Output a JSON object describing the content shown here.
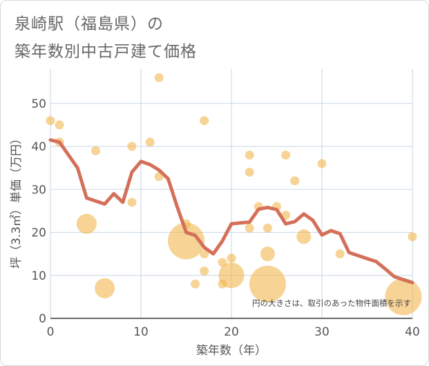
{
  "header": {
    "title_line1": "泉崎駅（福島県）の",
    "title_line2": "築年数別中古戸建て価格"
  },
  "chart_data": {
    "type": "scatter+line",
    "title": "泉崎駅（福島県）の築年数別中古戸建て価格",
    "xlabel": "築年数（年）",
    "ylabel": "坪（3.3㎡）単価（万円）",
    "xlim": [
      0,
      40
    ],
    "ylim": [
      0,
      58
    ],
    "xticks": [
      0,
      10,
      20,
      30,
      40
    ],
    "yticks": [
      0,
      10,
      20,
      30,
      40,
      50
    ],
    "grid": true,
    "annotation": "円の大きさは、取引のあった物件面積を示す",
    "colors": {
      "bubble": "#f2b54f",
      "line": "#d4705a",
      "grid": "#c9d6e3",
      "axis_text": "#555555"
    },
    "scatter": [
      {
        "x": 0,
        "y": 46,
        "size": 1
      },
      {
        "x": 1,
        "y": 45,
        "size": 1
      },
      {
        "x": 1,
        "y": 41,
        "size": 1
      },
      {
        "x": 4,
        "y": 22,
        "size": 3
      },
      {
        "x": 5,
        "y": 39,
        "size": 1
      },
      {
        "x": 6,
        "y": 7,
        "size": 3
      },
      {
        "x": 9,
        "y": 40,
        "size": 1
      },
      {
        "x": 9,
        "y": 27,
        "size": 1
      },
      {
        "x": 11,
        "y": 41,
        "size": 1
      },
      {
        "x": 12,
        "y": 56,
        "size": 1
      },
      {
        "x": 12,
        "y": 33,
        "size": 1
      },
      {
        "x": 15,
        "y": 22,
        "size": 1
      },
      {
        "x": 15,
        "y": 18,
        "size": 6
      },
      {
        "x": 16,
        "y": 8,
        "size": 1
      },
      {
        "x": 17,
        "y": 46,
        "size": 1
      },
      {
        "x": 17,
        "y": 15,
        "size": 1
      },
      {
        "x": 17,
        "y": 11,
        "size": 1
      },
      {
        "x": 19,
        "y": 13,
        "size": 1
      },
      {
        "x": 19,
        "y": 8,
        "size": 1
      },
      {
        "x": 20,
        "y": 14,
        "size": 1
      },
      {
        "x": 20,
        "y": 10,
        "size": 4
      },
      {
        "x": 22,
        "y": 38,
        "size": 1
      },
      {
        "x": 22,
        "y": 34,
        "size": 1
      },
      {
        "x": 22,
        "y": 21,
        "size": 1
      },
      {
        "x": 23,
        "y": 26,
        "size": 1
      },
      {
        "x": 24,
        "y": 21,
        "size": 1
      },
      {
        "x": 24,
        "y": 15,
        "size": 2
      },
      {
        "x": 24,
        "y": 8,
        "size": 6
      },
      {
        "x": 25,
        "y": 26,
        "size": 1
      },
      {
        "x": 26,
        "y": 38,
        "size": 1
      },
      {
        "x": 26,
        "y": 24,
        "size": 1
      },
      {
        "x": 27,
        "y": 32,
        "size": 1
      },
      {
        "x": 28,
        "y": 19,
        "size": 2
      },
      {
        "x": 30,
        "y": 36,
        "size": 1
      },
      {
        "x": 32,
        "y": 15,
        "size": 1
      },
      {
        "x": 39,
        "y": 5,
        "size": 6
      },
      {
        "x": 40,
        "y": 19,
        "size": 1
      }
    ],
    "line": {
      "x": [
        0,
        1,
        2,
        3,
        4,
        5,
        6,
        7,
        8,
        9,
        10,
        11,
        12,
        13,
        14,
        15,
        16,
        17,
        18,
        19,
        20,
        21,
        22,
        23,
        24,
        25,
        26,
        27,
        28,
        29,
        30,
        31,
        32,
        33,
        34,
        35,
        36,
        37,
        38,
        39,
        40
      ],
      "y": [
        41.5,
        41,
        38,
        35,
        28,
        27.3,
        26.6,
        29,
        27,
        34,
        36.5,
        35.8,
        34.5,
        32.5,
        26,
        20,
        19.3,
        16.5,
        15,
        18,
        22,
        22.2,
        22.4,
        25.4,
        25.8,
        25.3,
        22,
        22.5,
        24.3,
        22.8,
        19.4,
        20.4,
        19.7,
        15.3,
        14.6,
        13.9,
        13.2,
        11.5,
        9.7,
        9,
        8.3
      ]
    }
  }
}
